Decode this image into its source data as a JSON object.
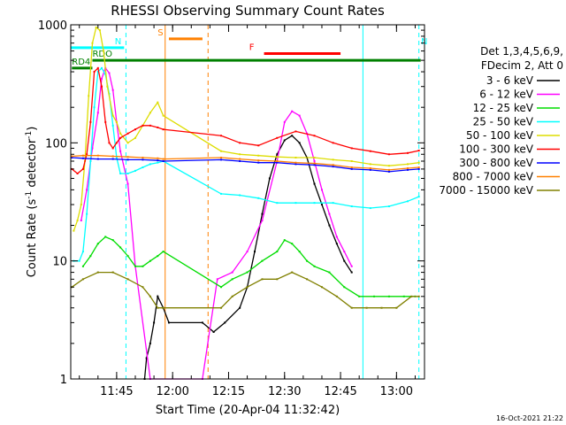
{
  "chart_data": {
    "type": "line",
    "title": "RHESSI Observing Summary Count Rates",
    "xlabel": "Start Time (20-Apr-04 11:32:42)",
    "ylabel": "Count Rate (s",
    "ylabel_sup": "-1",
    "ylabel_tail": " detector",
    "ylabel_sup2": "-1",
    "ylabel_end": ")",
    "y_scale": "log",
    "ylim": [
      1,
      1000
    ],
    "xlim": [
      "11:32:42",
      "13:07:30"
    ],
    "x_ticks": [
      "11:45",
      "12:00",
      "12:15",
      "12:30",
      "12:45",
      "13:00"
    ],
    "y_ticks": [
      "1",
      "10",
      "100",
      "1000"
    ],
    "legend_header": [
      "Det 1,3,4,5,6,9,",
      "FDecim 2, Att 0"
    ],
    "timestamp": "16-Oct-2021 21:22",
    "series": [
      {
        "name": "3 - 6 keV",
        "color": "#000000",
        "x": [
          "11:52:30",
          "11:53:00",
          "11:54:00",
          "11:55:00",
          "11:56:00",
          "11:57:30",
          "11:59:00",
          "12:08:00",
          "12:11:00",
          "12:14:00",
          "12:18:00",
          "12:20:00",
          "12:22:00",
          "12:24:00",
          "12:26:00",
          "12:28:00",
          "12:30:00",
          "12:32:00",
          "12:34:00",
          "12:36:00",
          "12:38:00",
          "12:40:00",
          "12:42:00",
          "12:44:00",
          "12:46:00",
          "12:48:00"
        ],
        "y": [
          1,
          1.5,
          2,
          3,
          5,
          4,
          3,
          3,
          2.5,
          3,
          4,
          6,
          12,
          25,
          50,
          80,
          105,
          115,
          100,
          75,
          45,
          30,
          20,
          14,
          10,
          8
        ]
      },
      {
        "name": "6 - 12 keV",
        "color": "#ff00ff",
        "x": [
          "11:35:30",
          "11:37:00",
          "11:38:30",
          "11:40:00",
          "11:41:00",
          "11:42:00",
          "11:43:00",
          "11:44:00",
          "11:45:00",
          "11:46:00",
          "11:48:00",
          "11:50:00",
          "11:54:00",
          "12:08:00",
          "12:12:00",
          "12:16:00",
          "12:20:00",
          "12:24:00",
          "12:28:00",
          "12:30:00",
          "12:32:00",
          "12:34:00",
          "12:36:00",
          "12:38:00",
          "12:40:00",
          "12:42:00",
          "12:44:00",
          "12:46:00",
          "12:48:00"
        ],
        "y": [
          22,
          40,
          90,
          180,
          350,
          430,
          390,
          280,
          150,
          85,
          45,
          9,
          1,
          1,
          7,
          8,
          12,
          22,
          70,
          150,
          185,
          170,
          120,
          70,
          40,
          25,
          16,
          12,
          9
        ]
      },
      {
        "name": "12 - 25 keV",
        "color": "#00dd00",
        "x": [
          "11:36:00",
          "11:38:00",
          "11:40:00",
          "11:42:00",
          "11:44:00",
          "11:46:00",
          "11:48:00",
          "11:50:00",
          "11:52:00",
          "11:54:00",
          "11:56:00",
          "11:57:30",
          "12:13:00",
          "12:16:00",
          "12:20:00",
          "12:24:00",
          "12:28:00",
          "12:30:00",
          "12:32:00",
          "12:34:00",
          "12:36:00",
          "12:38:00",
          "12:42:00",
          "12:46:00",
          "12:50:00",
          "12:54:00",
          "12:58:00",
          "13:02:00",
          "13:05:00"
        ],
        "y": [
          9,
          11,
          14,
          16,
          15,
          13,
          11,
          9,
          9,
          10,
          11,
          12,
          6,
          7,
          8,
          10,
          12,
          15,
          14,
          12,
          10,
          9,
          8,
          6,
          5,
          5,
          5,
          5,
          5
        ]
      },
      {
        "name": "25 - 50 keV",
        "color": "#00ffff",
        "x": [
          "11:33:30",
          "11:35:00",
          "11:36:00",
          "11:37:00",
          "11:38:00",
          "11:39:00",
          "11:40:00",
          "11:41:00",
          "11:42:00",
          "11:43:00",
          "11:44:00",
          "11:45:00",
          "11:46:00",
          "11:48:00",
          "11:50:00",
          "11:52:00",
          "11:54:00",
          "11:56:00",
          "11:57:30",
          "12:13:00",
          "12:18:00",
          "12:23:00",
          "12:28:00",
          "12:33:00",
          "12:38:00",
          "12:43:00",
          "12:48:00",
          "12:53:00",
          "12:58:00",
          "13:03:00",
          "13:06:00"
        ],
        "y": [
          10,
          10,
          12,
          25,
          70,
          200,
          400,
          430,
          380,
          260,
          140,
          75,
          55,
          55,
          58,
          62,
          66,
          68,
          70,
          37,
          36,
          34,
          31,
          31,
          31,
          31,
          29,
          28,
          29,
          32,
          35
        ]
      },
      {
        "name": "50 - 100 keV",
        "color": "#dddd00",
        "x": [
          "11:33:30",
          "11:34:30",
          "11:35:30",
          "11:36:30",
          "11:37:30",
          "11:38:30",
          "11:39:30",
          "11:40:30",
          "11:41:30",
          "11:42:30",
          "11:44:00",
          "11:45:00",
          "11:46:00",
          "11:48:00",
          "11:50:00",
          "11:52:00",
          "11:54:00",
          "11:56:00",
          "11:57:30",
          "12:13:00",
          "12:18:00",
          "12:23:00",
          "12:28:00",
          "12:33:00",
          "12:38:00",
          "12:43:00",
          "12:48:00",
          "12:53:00",
          "12:58:00",
          "13:03:00",
          "13:06:00"
        ],
        "y": [
          18,
          22,
          30,
          70,
          250,
          700,
          950,
          900,
          600,
          300,
          170,
          150,
          120,
          100,
          110,
          140,
          180,
          220,
          170,
          85,
          80,
          78,
          76,
          75,
          75,
          72,
          70,
          66,
          64,
          66,
          68
        ]
      },
      {
        "name": "100 - 300 keV",
        "color": "#ff0000",
        "x": [
          "11:33:00",
          "11:34:30",
          "11:36:00",
          "11:37:00",
          "11:38:00",
          "11:39:00",
          "11:40:00",
          "11:41:00",
          "11:42:00",
          "11:43:00",
          "11:44:00",
          "11:45:00",
          "11:46:00",
          "11:48:00",
          "11:50:00",
          "11:52:00",
          "11:54:00",
          "11:56:00",
          "11:57:30",
          "12:13:00",
          "12:18:00",
          "12:23:00",
          "12:28:00",
          "12:33:00",
          "12:38:00",
          "12:43:00",
          "12:48:00",
          "12:53:00",
          "12:58:00",
          "13:03:00",
          "13:06:00"
        ],
        "y": [
          60,
          55,
          60,
          80,
          150,
          400,
          430,
          300,
          150,
          100,
          90,
          100,
          110,
          120,
          130,
          140,
          140,
          135,
          130,
          115,
          100,
          95,
          110,
          125,
          115,
          100,
          90,
          85,
          80,
          82,
          86
        ]
      },
      {
        "name": "300 - 800 keV",
        "color": "#0000ff",
        "x": [
          "11:33:00",
          "11:36:00",
          "11:40:00",
          "11:44:00",
          "11:48:00",
          "11:52:00",
          "11:56:00",
          "11:57:30",
          "12:13:00",
          "12:18:00",
          "12:23:00",
          "12:28:00",
          "12:33:00",
          "12:38:00",
          "12:43:00",
          "12:48:00",
          "12:53:00",
          "12:58:00",
          "13:03:00",
          "13:06:00"
        ],
        "y": [
          75,
          74,
          73,
          73,
          72,
          72,
          71,
          70,
          72,
          70,
          68,
          68,
          66,
          65,
          63,
          60,
          59,
          57,
          59,
          60
        ]
      },
      {
        "name": "800 - 7000 keV",
        "color": "#ff8000",
        "x": [
          "11:33:00",
          "11:36:00",
          "11:40:00",
          "11:44:00",
          "11:48:00",
          "11:52:00",
          "11:56:00",
          "11:57:30",
          "12:13:00",
          "12:18:00",
          "12:23:00",
          "12:28:00",
          "12:33:00",
          "12:38:00",
          "12:43:00",
          "12:48:00",
          "12:53:00",
          "12:58:00",
          "13:03:00",
          "13:06:00"
        ],
        "y": [
          77,
          78,
          78,
          77,
          76,
          75,
          74,
          73,
          75,
          73,
          71,
          70,
          68,
          67,
          65,
          62,
          61,
          59,
          61,
          62
        ]
      },
      {
        "name": "7000 - 15000 keV",
        "color": "#808000",
        "x": [
          "11:33:00",
          "11:36:00",
          "11:40:00",
          "11:44:00",
          "11:48:00",
          "11:52:00",
          "11:54:00",
          "11:56:00",
          "11:57:30",
          "12:13:00",
          "12:16:00",
          "12:20:00",
          "12:24:00",
          "12:28:00",
          "12:32:00",
          "12:36:00",
          "12:40:00",
          "12:44:00",
          "12:48:00",
          "12:52:00",
          "12:56:00",
          "13:00:00",
          "13:04:00",
          "13:06:00"
        ],
        "y": [
          6,
          7,
          8,
          8,
          7,
          6,
          5,
          4,
          4,
          4,
          5,
          6,
          7,
          7,
          8,
          7,
          6,
          5,
          4,
          4,
          4,
          4,
          5,
          5
        ]
      }
    ],
    "flag_bars": [
      {
        "label": "RDO",
        "color": "#008000",
        "y": 500,
        "start": "11:38:30",
        "end": "13:06:30"
      },
      {
        "label": "RD4",
        "color": "#008000",
        "y": 430,
        "start": "11:33:00",
        "end": "11:38:30"
      },
      {
        "label": "N",
        "color": "#00ffff",
        "y": 640,
        "start": "11:32:42",
        "end": "11:47:00",
        "label_at": "11:44:30"
      },
      {
        "label": "N",
        "color": "#00ffff",
        "y": 640,
        "start": "13:08:30",
        "end": "13:07:30",
        "label_at": "13:08:30"
      },
      {
        "label": "S",
        "color": "#ff8000",
        "y": 760,
        "start": "11:59:00",
        "end": "12:08:00",
        "label_at": "11:56:00"
      },
      {
        "label": "F",
        "color": "#ff0000",
        "y": 570,
        "start": "12:24:30",
        "end": "12:45:00",
        "label_at": "12:20:30"
      }
    ],
    "night_lines": [
      {
        "color": "#00ffff",
        "time": "11:47:30",
        "style": "dashed"
      },
      {
        "color": "#ff8000",
        "time": "11:58:00",
        "style": "solid"
      },
      {
        "color": "#ff8000",
        "time": "12:09:30",
        "style": "dashed"
      },
      {
        "color": "#00ffff",
        "time": "12:51:00",
        "style": "solid"
      },
      {
        "color": "#00ffff",
        "time": "13:06:00",
        "style": "dashed"
      }
    ]
  }
}
